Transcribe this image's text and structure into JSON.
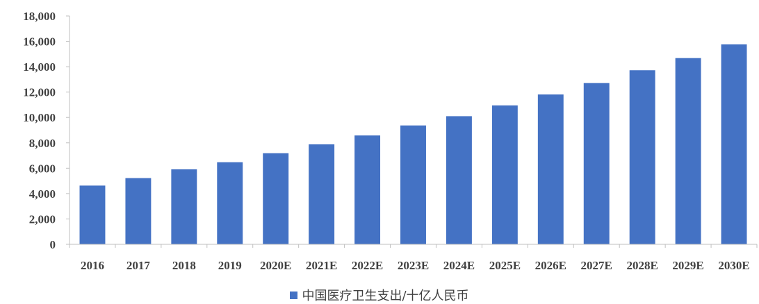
{
  "chart_data": {
    "type": "bar",
    "categories": [
      "2016",
      "2017",
      "2018",
      "2019",
      "2020E",
      "2021E",
      "2022E",
      "2023E",
      "2024E",
      "2025E",
      "2026E",
      "2027E",
      "2028E",
      "2029E",
      "2030E"
    ],
    "series": [
      {
        "name": "中国医疗卫生支出/十亿人民币",
        "color": "#4472C4",
        "values": [
          4630,
          5220,
          5910,
          6470,
          7180,
          7880,
          8580,
          9370,
          10100,
          10950,
          11810,
          12710,
          13720,
          14680,
          15760
        ]
      }
    ],
    "ylim": [
      0,
      18000
    ],
    "yticks": [
      0,
      2000,
      4000,
      6000,
      8000,
      10000,
      12000,
      14000,
      16000,
      18000
    ],
    "ytick_labels": [
      "0",
      "2,000",
      "4,000",
      "6,000",
      "8,000",
      "10,000",
      "12,000",
      "14,000",
      "16,000",
      "18,000"
    ],
    "grid": false,
    "legend_position": "bottom"
  }
}
